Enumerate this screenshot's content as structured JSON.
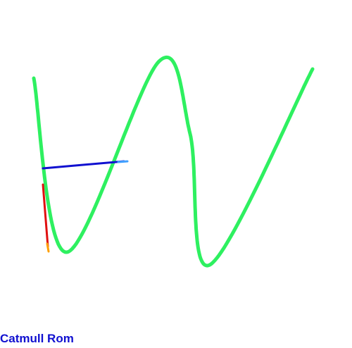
{
  "caption": {
    "text": "Catmull Rom",
    "color": "#1010d0"
  },
  "colors": {
    "background": "#ffffff",
    "curve": "#2ef060",
    "normal": "#1010d0",
    "normal_tip": "#40a0ff",
    "tangent": "#e01010",
    "tangent_tip": "#ffa000"
  },
  "scene": {
    "spline_type": "catmull-rom",
    "control_points_count": 7,
    "vectors": [
      "normal",
      "tangent"
    ]
  }
}
